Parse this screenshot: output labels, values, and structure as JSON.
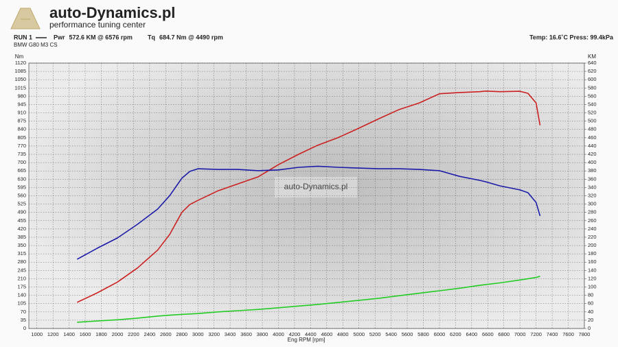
{
  "chart_data": {
    "type": "line",
    "title": "auto-Dynamics.pl",
    "subtitle": "performance tuning center",
    "run": "RUN 1",
    "vehicle": "BMW G80 M3 CS",
    "conditions": "Temp: 16.6˚C   Press: 99.4kPa",
    "watermark": "auto-Dynamics.pl",
    "x_label": "Eng RPM [rpm]",
    "y_label": "Nm",
    "y2_label": "KM",
    "x": [
      1500,
      1750,
      2000,
      2250,
      2500,
      2650,
      2800,
      2900,
      3000,
      3250,
      3500,
      3750,
      4000,
      4250,
      4490,
      4750,
      5000,
      5250,
      5500,
      5750,
      6000,
      6250,
      6500,
      6576,
      6750,
      7000,
      7100,
      7200,
      7250
    ],
    "series": [
      {
        "name": "Pwr",
        "peak_label": "572.6 KM @ 6576 rpm",
        "color": "#cc1f1f",
        "axis": "y2",
        "values": [
          63,
          86,
          112,
          146,
          189,
          227,
          280,
          299,
          309,
          332,
          349,
          366,
          395,
          420,
          442,
          461,
          483,
          506,
          528,
          544,
          566,
          569,
          571,
          572.6,
          571,
          572,
          567,
          544,
          490
        ]
      },
      {
        "name": "Tq",
        "peak_label": "684.7 Nm @ 4490 rpm",
        "color": "#1a1aa8",
        "values": [
          292,
          339,
          382,
          440,
          504,
          561,
          634,
          663,
          674,
          671,
          671,
          666,
          669,
          680,
          684.7,
          680,
          677,
          674,
          674,
          671,
          666,
          642,
          625,
          619,
          602,
          585,
          573,
          532,
          475
        ]
      },
      {
        "color": "#22cc22",
        "axis": "y2",
        "values": [
          15,
          18,
          21,
          25,
          30,
          32,
          34,
          35,
          36,
          40,
          43,
          46,
          50,
          54,
          58,
          63,
          68,
          73,
          79,
          85,
          91,
          97,
          104,
          106,
          110,
          117,
          120,
          123,
          126
        ]
      }
    ],
    "xlim": [
      900,
      7800
    ],
    "xticks": [
      1000,
      1200,
      1400,
      1600,
      1800,
      2000,
      2200,
      2400,
      2600,
      2800,
      3000,
      3200,
      3400,
      3600,
      3800,
      4000,
      4200,
      4400,
      4600,
      4800,
      5000,
      5200,
      5400,
      5600,
      5800,
      6000,
      6200,
      6400,
      6600,
      6800,
      7000,
      7200,
      7400,
      7600,
      7800
    ],
    "ylim": [
      0,
      1120
    ],
    "yticks": [
      0,
      35,
      70,
      105,
      140,
      175,
      210,
      245,
      280,
      315,
      350,
      385,
      420,
      455,
      490,
      525,
      560,
      595,
      630,
      665,
      700,
      735,
      770,
      805,
      840,
      875,
      910,
      945,
      980,
      1015,
      1050,
      1085,
      1120
    ],
    "y2lim": [
      0,
      640
    ],
    "y2ticks": [
      0,
      20,
      40,
      60,
      80,
      100,
      120,
      140,
      160,
      180,
      200,
      220,
      240,
      260,
      280,
      300,
      320,
      340,
      360,
      380,
      400,
      420,
      440,
      460,
      480,
      500,
      520,
      540,
      560,
      580,
      600,
      620,
      640
    ],
    "grid": true
  }
}
